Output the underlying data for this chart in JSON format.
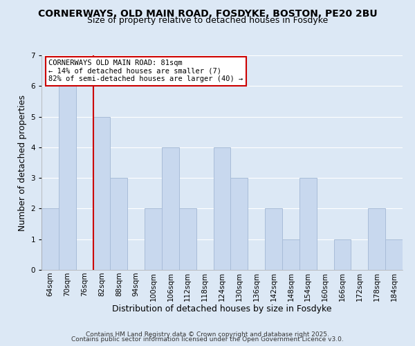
{
  "title": "CORNERWAYS, OLD MAIN ROAD, FOSDYKE, BOSTON, PE20 2BU",
  "subtitle": "Size of property relative to detached houses in Fosdyke",
  "xlabel": "Distribution of detached houses by size in Fosdyke",
  "ylabel": "Number of detached properties",
  "footer_line1": "Contains HM Land Registry data © Crown copyright and database right 2025.",
  "footer_line2": "Contains public sector information licensed under the Open Government Licence v3.0.",
  "bin_labels": [
    "64sqm",
    "70sqm",
    "76sqm",
    "82sqm",
    "88sqm",
    "94sqm",
    "100sqm",
    "106sqm",
    "112sqm",
    "118sqm",
    "124sqm",
    "130sqm",
    "136sqm",
    "142sqm",
    "148sqm",
    "154sqm",
    "160sqm",
    "166sqm",
    "172sqm",
    "178sqm",
    "184sqm"
  ],
  "bar_values": [
    2,
    6,
    0,
    5,
    3,
    0,
    2,
    4,
    2,
    0,
    4,
    3,
    0,
    2,
    1,
    3,
    0,
    1,
    0,
    2,
    1
  ],
  "bar_color": "#c8d8ee",
  "bar_edge_color": "#a8bcd8",
  "annotation_text": "CORNERWAYS OLD MAIN ROAD: 81sqm\n← 14% of detached houses are smaller (7)\n82% of semi-detached houses are larger (40) →",
  "annotation_box_facecolor": "#ffffff",
  "annotation_box_edgecolor": "#cc0000",
  "red_line_color": "#cc0000",
  "ylim": [
    0,
    7
  ],
  "yticks": [
    0,
    1,
    2,
    3,
    4,
    5,
    6,
    7
  ],
  "background_color": "#dce8f5",
  "grid_color": "#ffffff",
  "title_fontsize": 10,
  "subtitle_fontsize": 9,
  "axis_label_fontsize": 9,
  "tick_fontsize": 7.5,
  "annotation_fontsize": 7.5,
  "footer_fontsize": 6.5
}
